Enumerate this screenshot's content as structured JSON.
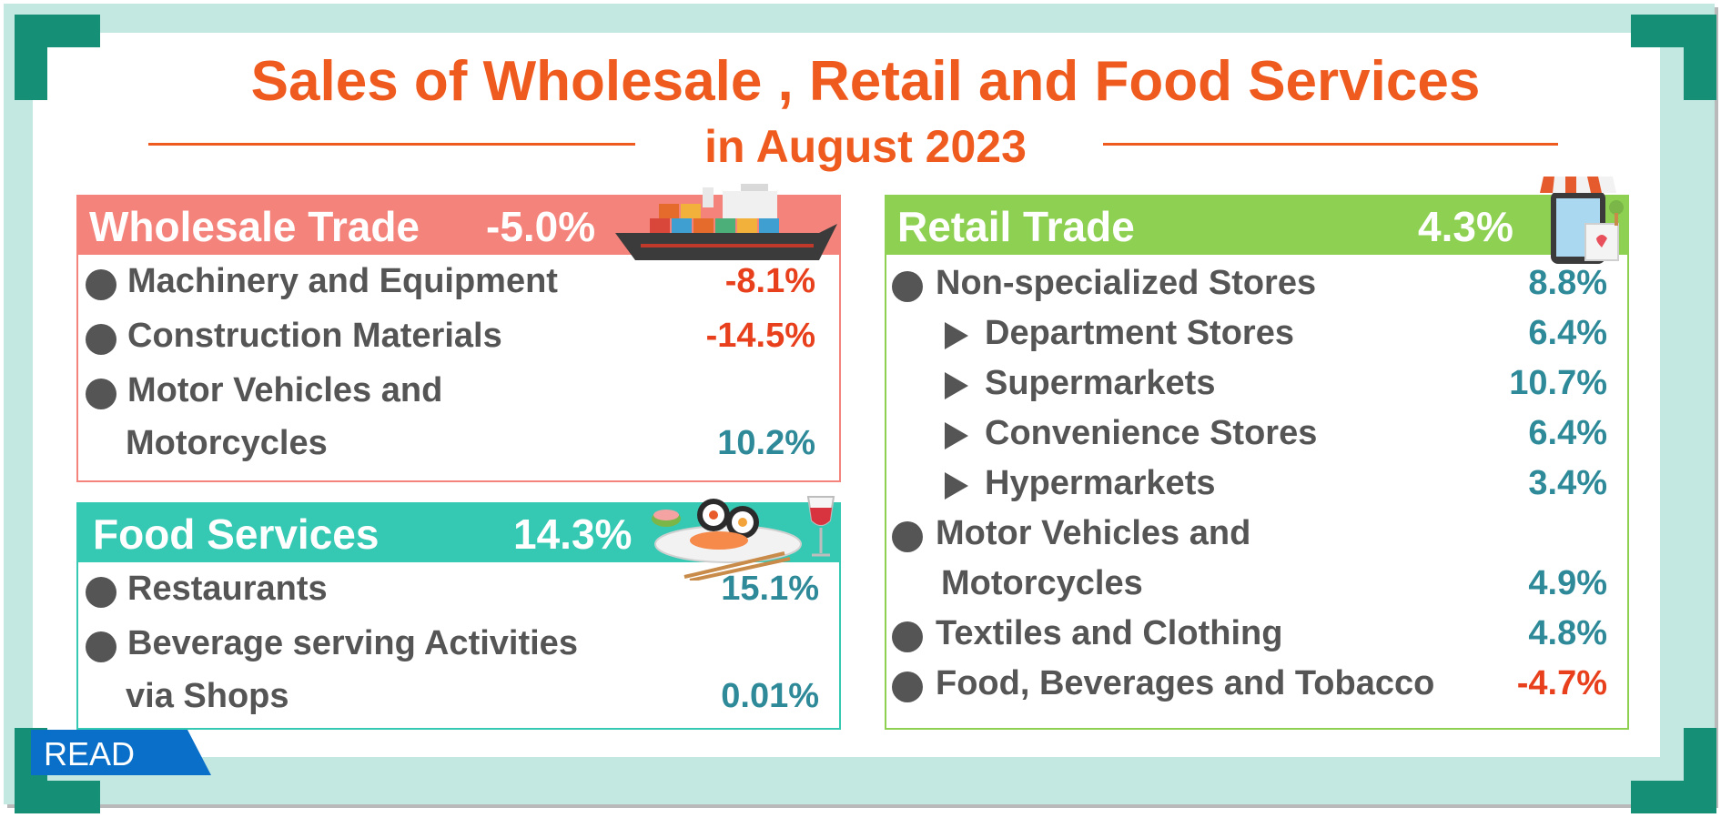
{
  "title": {
    "line1": "Sales of  Wholesale , Retail and Food  Services",
    "line2": "in August 2023"
  },
  "colors": {
    "title": "#ef5a1e",
    "wholesale_header": "#f4837c",
    "food_header": "#35c9b3",
    "retail_header": "#8ed152",
    "negative": "#e8401c",
    "positive": "#2e8a99",
    "frame": "#c3e8e2",
    "corner": "#159076",
    "read_button": "#0a6fc8"
  },
  "wholesale": {
    "title": "Wholesale Trade",
    "value": "-5.0%",
    "icon": "cargo-ship-icon",
    "items": [
      {
        "label": "Machinery and Equipment",
        "value": "-8.1%"
      },
      {
        "label": "Construction Materials",
        "value": "-14.5%"
      },
      {
        "label_line1": "Motor Vehicles and",
        "label_line2": "Motorcycles",
        "value": "10.2%"
      }
    ]
  },
  "food": {
    "title": "Food  Services",
    "value": "14.3%",
    "icon": "sushi-platter-icon",
    "items": [
      {
        "label": "Restaurants",
        "value": "15.1%"
      },
      {
        "label_line1": "Beverage serving Activities",
        "label_line2": "via Shops",
        "value": "0.01%"
      }
    ]
  },
  "retail": {
    "title": "Retail  Trade",
    "value": "4.3%",
    "icon": "online-shop-icon",
    "items": [
      {
        "label": "Non-specialized Stores",
        "value": "8.8%"
      },
      {
        "label": "Department Stores",
        "value": "6.4%"
      },
      {
        "label": "Supermarkets",
        "value": "10.7%"
      },
      {
        "label": "Convenience Stores",
        "value": "6.4%"
      },
      {
        "label": "Hypermarkets",
        "value": "3.4%"
      },
      {
        "label_line1": "Motor Vehicles and",
        "label_line2": "Motorcycles",
        "value": "4.9%"
      },
      {
        "label": "Textiles and Clothing",
        "value": "4.8%"
      },
      {
        "label": "Food, Beverages and Tobacco",
        "value": "-4.7%"
      }
    ]
  },
  "read_button": {
    "label": "READ"
  }
}
